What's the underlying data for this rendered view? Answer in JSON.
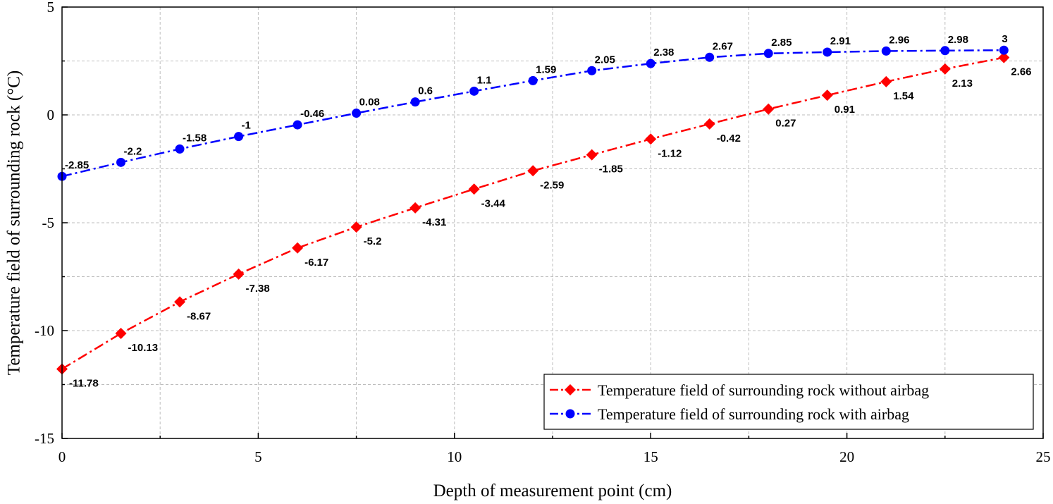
{
  "chart_data": {
    "type": "line",
    "title": "",
    "xlabel": "Depth of measurement point (cm)",
    "ylabel": "Temperature field of surrounding rock (°C)",
    "xlim": [
      0,
      25
    ],
    "ylim": [
      -15,
      5
    ],
    "xticks": [
      0,
      5,
      10,
      15,
      20,
      25
    ],
    "yticks": [
      -15,
      -10,
      -5,
      0,
      5
    ],
    "grid": true,
    "legend_position": "bottom-right",
    "x": [
      0,
      1.5,
      3,
      4.5,
      6,
      7.5,
      9,
      10.5,
      12,
      13.5,
      15,
      16.5,
      18,
      19.5,
      21,
      22.5,
      24
    ],
    "series": [
      {
        "name": "Temperature field of surrounding rock without airbag",
        "color": "#ff0000",
        "marker": "diamond",
        "line_style": "dash-dot",
        "label_side": "below",
        "values": [
          -11.78,
          -10.13,
          -8.67,
          -7.38,
          -6.17,
          -5.2,
          -4.31,
          -3.44,
          -2.59,
          -1.85,
          -1.12,
          -0.42,
          0.27,
          0.91,
          1.54,
          2.13,
          2.66
        ]
      },
      {
        "name": "Temperature field of surrounding rock with airbag",
        "color": "#0000ff",
        "marker": "circle",
        "line_style": "dash-dot",
        "label_side": "above",
        "values": [
          -2.85,
          -2.2,
          -1.58,
          -1,
          -0.46,
          0.08,
          0.6,
          1.1,
          1.59,
          2.05,
          2.38,
          2.67,
          2.85,
          2.91,
          2.96,
          2.98,
          3
        ]
      }
    ]
  }
}
